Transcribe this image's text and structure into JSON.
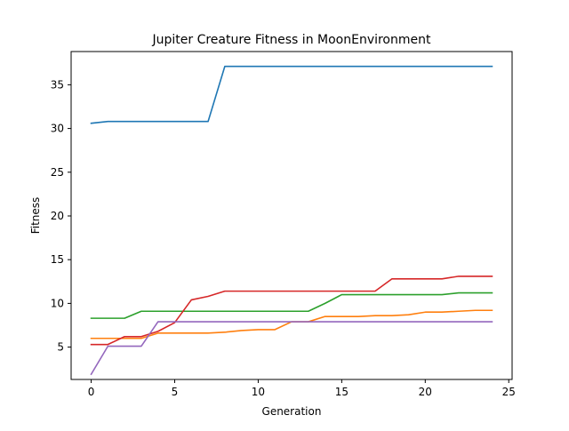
{
  "chart_data": {
    "type": "line",
    "title": "Jupiter Creature Fitness in MoonEnvironment",
    "xlabel": "Generation",
    "ylabel": "Fitness",
    "xlim": [
      -1.2,
      25.2
    ],
    "ylim": [
      1.3,
      38.8
    ],
    "xticks": [
      0,
      5,
      10,
      15,
      20,
      25
    ],
    "yticks": [
      5,
      10,
      15,
      20,
      25,
      30,
      35
    ],
    "grid": false,
    "legend": "none",
    "x": [
      0,
      1,
      2,
      3,
      4,
      5,
      6,
      7,
      8,
      9,
      10,
      11,
      12,
      13,
      14,
      15,
      16,
      17,
      18,
      19,
      20,
      21,
      22,
      23,
      24
    ],
    "series": [
      {
        "color": "#1f77b4",
        "values": [
          30.6,
          30.8,
          30.8,
          30.8,
          30.8,
          30.8,
          30.8,
          30.8,
          37.1,
          37.1,
          37.1,
          37.1,
          37.1,
          37.1,
          37.1,
          37.1,
          37.1,
          37.1,
          37.1,
          37.1,
          37.1,
          37.1,
          37.1,
          37.1,
          37.1
        ]
      },
      {
        "color": "#ff7f0e",
        "values": [
          6.0,
          6.0,
          6.0,
          6.0,
          6.6,
          6.6,
          6.6,
          6.6,
          6.7,
          6.9,
          7.0,
          7.0,
          7.9,
          7.9,
          8.5,
          8.5,
          8.5,
          8.6,
          8.6,
          8.7,
          9.0,
          9.0,
          9.1,
          9.2,
          9.2
        ]
      },
      {
        "color": "#2ca02c",
        "values": [
          8.3,
          8.3,
          8.3,
          9.1,
          9.1,
          9.1,
          9.1,
          9.1,
          9.1,
          9.1,
          9.1,
          9.1,
          9.1,
          9.1,
          10.0,
          11.0,
          11.0,
          11.0,
          11.0,
          11.0,
          11.0,
          11.0,
          11.2,
          11.2,
          11.2
        ]
      },
      {
        "color": "#d62728",
        "values": [
          5.3,
          5.3,
          6.2,
          6.2,
          6.8,
          7.8,
          10.4,
          10.8,
          11.4,
          11.4,
          11.4,
          11.4,
          11.4,
          11.4,
          11.4,
          11.4,
          11.4,
          11.4,
          12.8,
          12.8,
          12.8,
          12.8,
          13.1,
          13.1,
          13.1
        ]
      },
      {
        "color": "#9467bd",
        "values": [
          1.9,
          5.1,
          5.1,
          5.1,
          7.9,
          7.9,
          7.9,
          7.9,
          7.9,
          7.9,
          7.9,
          7.9,
          7.9,
          7.9,
          7.9,
          7.9,
          7.9,
          7.9,
          7.9,
          7.9,
          7.9,
          7.9,
          7.9,
          7.9,
          7.9
        ]
      }
    ]
  }
}
